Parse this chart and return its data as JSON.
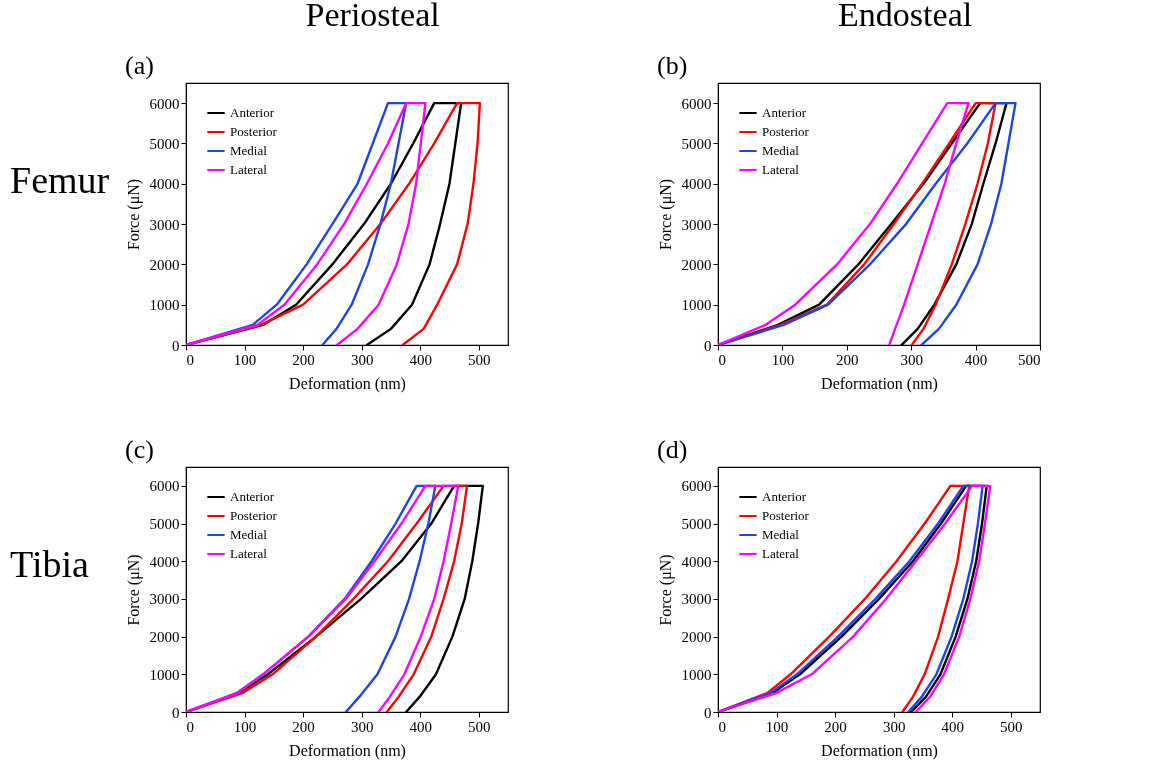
{
  "chart_data": [
    {
      "type": "line",
      "title": "(a)",
      "annotations": [
        "Periosteal",
        "Femur"
      ],
      "xlabel": "Deformation (nm)",
      "ylabel": "Force (μN)",
      "xlim": [
        0,
        550
      ],
      "xticks": [
        0,
        100,
        200,
        300,
        400,
        500
      ],
      "ylim": [
        0,
        6500
      ],
      "yticks": [
        0,
        1000,
        2000,
        3000,
        4000,
        5000,
        6000
      ],
      "legend": "top left",
      "series": [
        {
          "name": "Anterior",
          "color": "#000000",
          "x": [
            0,
            132,
            188,
            250,
            304,
            350,
            388,
            424,
            470,
            460,
            450,
            434,
            416,
            386,
            350,
            309
          ],
          "values": [
            0,
            500,
            1000,
            2000,
            3000,
            4000,
            5000,
            6000,
            6000,
            5000,
            4000,
            3000,
            2000,
            1000,
            400,
            0
          ]
        },
        {
          "name": "Posterior",
          "color": "#ff0000",
          "x": [
            0,
            128,
            200,
            275,
            332,
            381,
            424,
            463,
            502,
            498,
            491,
            481,
            463,
            429,
            406,
            370
          ],
          "values": [
            0,
            500,
            1000,
            2000,
            3000,
            4000,
            5000,
            6000,
            6000,
            5000,
            4000,
            3000,
            2000,
            1000,
            400,
            0
          ]
        },
        {
          "name": "Medial",
          "color": "#1f45e0",
          "x": [
            0,
            114,
            155,
            206,
            250,
            293,
            319,
            345,
            376,
            363,
            350,
            332,
            311,
            283,
            257,
            233
          ],
          "values": [
            0,
            500,
            1000,
            2000,
            3000,
            4000,
            5000,
            6000,
            6000,
            5000,
            4000,
            3000,
            2000,
            1000,
            400,
            0
          ]
        },
        {
          "name": "Lateral",
          "color": "#ff00ff",
          "x": [
            0,
            122,
            168,
            224,
            270,
            309,
            345,
            376,
            409,
            401,
            393,
            380,
            360,
            329,
            293,
            258
          ],
          "values": [
            0,
            500,
            1000,
            2000,
            3000,
            4000,
            5000,
            6000,
            6000,
            5000,
            4000,
            3000,
            2000,
            1000,
            400,
            0
          ]
        }
      ]
    },
    {
      "type": "line",
      "title": "(b)",
      "annotations": [
        "Endosteal"
      ],
      "xlabel": "Deformation (nm)",
      "ylabel": "Force (μN)",
      "xlim": [
        0,
        500
      ],
      "xticks": [
        0,
        100,
        200,
        300,
        400,
        500
      ],
      "ylim": [
        0,
        6500
      ],
      "yticks": [
        0,
        1000,
        2000,
        3000,
        4000,
        5000,
        6000
      ],
      "legend": "top left",
      "series": [
        {
          "name": "Anterior",
          "color": "#000000",
          "x": [
            0,
            93,
            157,
            218,
            269,
            319,
            363,
            407,
            448,
            431,
            412,
            394,
            370,
            336,
            310,
            285
          ],
          "values": [
            0,
            500,
            1000,
            2000,
            3000,
            4000,
            5000,
            6000,
            6000,
            5000,
            4000,
            3000,
            2000,
            1000,
            400,
            0
          ]
        },
        {
          "name": "Posterior",
          "color": "#ff0000",
          "x": [
            0,
            97,
            169,
            227,
            273,
            317,
            359,
            400,
            431,
            419,
            403,
            384,
            363,
            338,
            319,
            301
          ],
          "values": [
            0,
            500,
            1000,
            2000,
            3000,
            4000,
            5000,
            6000,
            6000,
            5000,
            4000,
            3000,
            2000,
            1000,
            400,
            0
          ]
        },
        {
          "name": "Medial",
          "color": "#1f45e0",
          "x": [
            0,
            102,
            171,
            236,
            292,
            338,
            387,
            431,
            462,
            451,
            440,
            424,
            403,
            370,
            343,
            316
          ],
          "values": [
            0,
            500,
            1000,
            2000,
            3000,
            4000,
            5000,
            6000,
            6000,
            5000,
            4000,
            3000,
            2000,
            1000,
            400,
            0
          ]
        },
        {
          "name": "Lateral",
          "color": "#ff00ff",
          "x": [
            0,
            74,
            120,
            185,
            236,
            278,
            317,
            356,
            389,
            370,
            352,
            331,
            310,
            289,
            275,
            266
          ],
          "values": [
            0,
            500,
            1000,
            2000,
            3000,
            4000,
            5000,
            6000,
            6000,
            5000,
            4000,
            3000,
            2000,
            1000,
            400,
            0
          ]
        }
      ]
    },
    {
      "type": "line",
      "title": "(c)",
      "annotations": [
        "Tibia"
      ],
      "xlabel": "Deformation (nm)",
      "ylabel": "Force (μN)",
      "xlim": [
        0,
        550
      ],
      "xticks": [
        0,
        100,
        200,
        300,
        400,
        500
      ],
      "ylim": [
        0,
        6500
      ],
      "yticks": [
        0,
        1000,
        2000,
        3000,
        4000,
        5000,
        6000
      ],
      "legend": "top left",
      "series": [
        {
          "name": "Anterior",
          "color": "#000000",
          "x": [
            0,
            89,
            140,
            222,
            299,
            368,
            419,
            458,
            507,
            499,
            489,
            476,
            455,
            427,
            399,
            376
          ],
          "values": [
            0,
            500,
            1000,
            2000,
            3000,
            4000,
            5000,
            6000,
            6000,
            5000,
            4000,
            3000,
            2000,
            1000,
            400,
            0
          ]
        },
        {
          "name": "Posterior",
          "color": "#ff0000",
          "x": [
            0,
            96,
            148,
            222,
            286,
            345,
            394,
            440,
            480,
            471,
            458,
            440,
            419,
            389,
            363,
            343
          ],
          "values": [
            0,
            500,
            1000,
            2000,
            3000,
            4000,
            5000,
            6000,
            6000,
            5000,
            4000,
            3000,
            2000,
            1000,
            400,
            0
          ]
        },
        {
          "name": "Medial",
          "color": "#1f45e0",
          "x": [
            0,
            86,
            132,
            209,
            271,
            317,
            358,
            394,
            426,
            414,
            399,
            381,
            358,
            327,
            296,
            273
          ],
          "values": [
            0,
            500,
            1000,
            2000,
            3000,
            4000,
            5000,
            6000,
            6000,
            5000,
            4000,
            3000,
            2000,
            1000,
            400,
            0
          ]
        },
        {
          "name": "Lateral",
          "color": "#ff00ff",
          "x": [
            0,
            88,
            132,
            209,
            273,
            322,
            368,
            409,
            465,
            453,
            440,
            424,
            401,
            373,
            348,
            329
          ],
          "values": [
            0,
            500,
            1000,
            2000,
            3000,
            4000,
            5000,
            6000,
            6000,
            5000,
            4000,
            3000,
            2000,
            1000,
            400,
            0
          ]
        }
      ]
    },
    {
      "type": "line",
      "title": "(d)",
      "xlabel": "Deformation (nm)",
      "ylabel": "Force (μN)",
      "xlim": [
        0,
        550
      ],
      "xticks": [
        0,
        100,
        200,
        300,
        400,
        500
      ],
      "ylim": [
        0,
        6500
      ],
      "yticks": [
        0,
        1000,
        2000,
        3000,
        4000,
        5000,
        6000
      ],
      "legend": "top left",
      "series": [
        {
          "name": "Anterior",
          "color": "#000000",
          "x": [
            0,
            92,
            140,
            211,
            275,
            333,
            381,
            424,
            459,
            451,
            441,
            426,
            406,
            380,
            355,
            330
          ],
          "values": [
            0,
            500,
            1000,
            2000,
            3000,
            4000,
            5000,
            6000,
            6000,
            5000,
            4000,
            3000,
            2000,
            1000,
            400,
            0
          ]
        },
        {
          "name": "Posterior",
          "color": "#ff0000",
          "x": [
            0,
            84,
            124,
            190,
            251,
            305,
            353,
            397,
            429,
            419,
            409,
            393,
            376,
            353,
            333,
            315
          ],
          "values": [
            0,
            500,
            1000,
            2000,
            3000,
            4000,
            5000,
            6000,
            6000,
            5000,
            4000,
            3000,
            2000,
            1000,
            400,
            0
          ]
        },
        {
          "name": "Medial",
          "color": "#1f45e0",
          "x": [
            0,
            89,
            135,
            205,
            269,
            327,
            376,
            419,
            452,
            444,
            434,
            419,
            399,
            373,
            348,
            325
          ],
          "values": [
            0,
            500,
            1000,
            2000,
            3000,
            4000,
            5000,
            6000,
            6000,
            5000,
            4000,
            3000,
            2000,
            1000,
            400,
            0
          ]
        },
        {
          "name": "Lateral",
          "color": "#ff00ff",
          "x": [
            0,
            99,
            160,
            231,
            287,
            338,
            388,
            434,
            465,
            456,
            446,
            431,
            412,
            386,
            362,
            338
          ],
          "values": [
            0,
            500,
            1000,
            2000,
            3000,
            4000,
            5000,
            6000,
            6000,
            5000,
            4000,
            3000,
            2000,
            1000,
            400,
            0
          ]
        }
      ]
    }
  ]
}
